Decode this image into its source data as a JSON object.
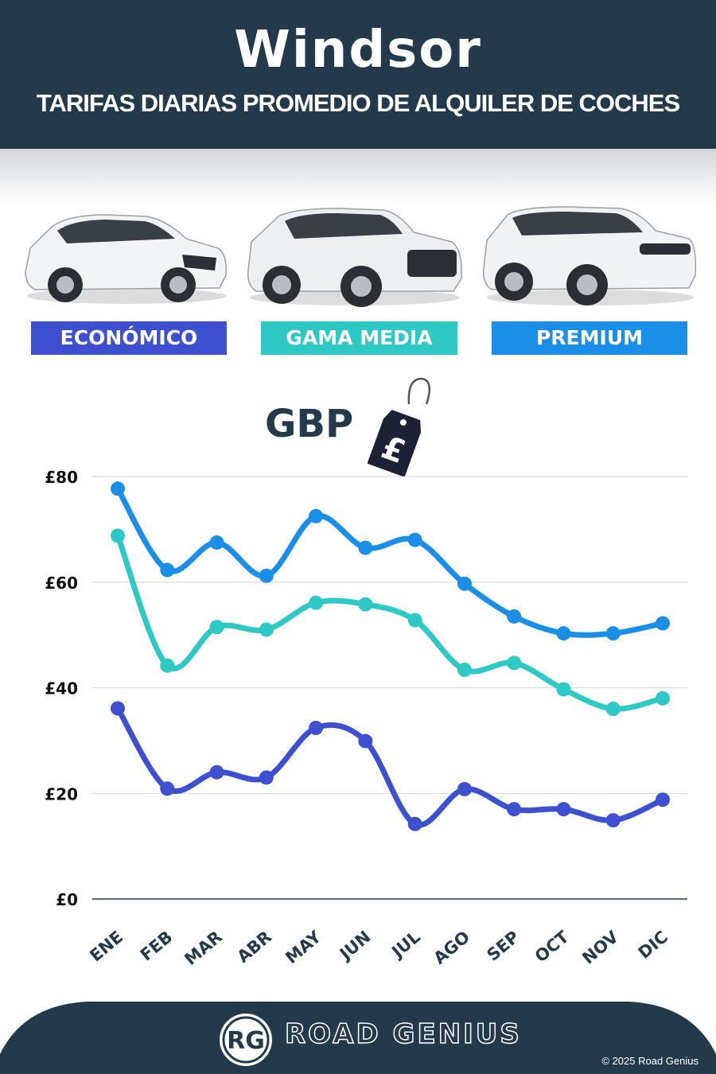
{
  "header": {
    "title": "Windsor",
    "subtitle": "TARIFAS DIARIAS PROMEDIO DE ALQUILER DE COCHES"
  },
  "categories": [
    {
      "label": "ECONÓMICO",
      "color": "#3e4fd0",
      "icon": "hatchback-car-icon"
    },
    {
      "label": "GAMA MEDIA",
      "color": "#2ec9c4",
      "icon": "suv-car-icon"
    },
    {
      "label": "PREMIUM",
      "color": "#1b8fe8",
      "icon": "luxury-suv-car-icon"
    }
  ],
  "currency": {
    "label": "GBP",
    "symbol": "£",
    "icon": "price-tag-icon"
  },
  "chart_data": {
    "type": "line",
    "title": "",
    "xlabel": "",
    "ylabel": "",
    "categories": [
      "ENE",
      "FEB",
      "MAR",
      "ABR",
      "MAY",
      "JUN",
      "JUL",
      "AGO",
      "SEP",
      "OCT",
      "NOV",
      "DIC"
    ],
    "yticks": [
      0,
      20,
      40,
      60,
      80
    ],
    "ytick_labels": [
      "£0",
      "£20",
      "£40",
      "£60",
      "£80"
    ],
    "ylim": [
      0,
      80
    ],
    "grid": true,
    "series": [
      {
        "name": "PREMIUM",
        "color": "#1b8fe8",
        "values": [
          77.7,
          62.3,
          67.5,
          61.2,
          72.5,
          66.5,
          68.0,
          59.7,
          53.5,
          50.3,
          50.3,
          52.2
        ]
      },
      {
        "name": "GAMA MEDIA",
        "color": "#2ec9c4",
        "values": [
          68.8,
          44.2,
          51.5,
          51.0,
          56.1,
          55.8,
          52.8,
          43.4,
          44.7,
          39.7,
          36.0,
          38.0
        ]
      },
      {
        "name": "ECONÓMICO",
        "color": "#3e4fd0",
        "values": [
          36.1,
          20.9,
          24.0,
          23.0,
          32.4,
          29.9,
          14.2,
          20.8,
          17.0,
          17.0,
          14.9,
          18.8
        ]
      }
    ]
  },
  "footer": {
    "brand": "ROAD GENIUS",
    "logo_text": "RG",
    "copyright": "© 2025 Road Genius",
    "color": "#243a4b"
  }
}
